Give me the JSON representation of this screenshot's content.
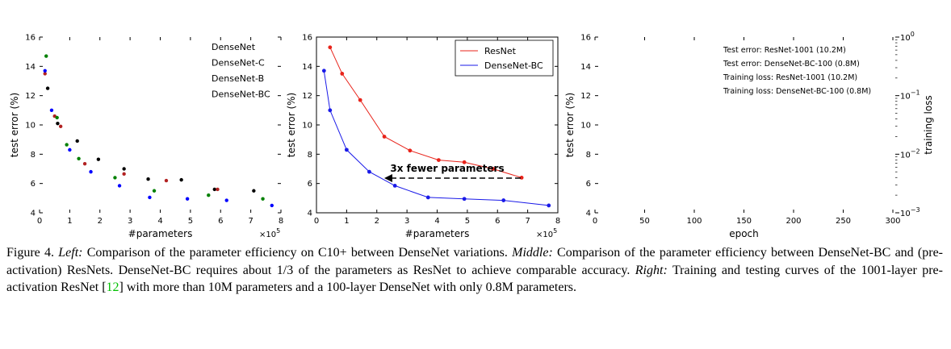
{
  "panels": {
    "left": {
      "xlabel": "#parameters",
      "ylabel": "test error (%)",
      "multiplier": "×10",
      "multiplier_exp": "5",
      "xticks": [
        "0",
        "1",
        "2",
        "3",
        "4",
        "5",
        "6",
        "7",
        "8"
      ],
      "yticks": [
        "4",
        "6",
        "8",
        "10",
        "12",
        "14",
        "16"
      ],
      "legend": [
        "DenseNet",
        "DenseNet-C",
        "DenseNet-B",
        "DenseNet-BC"
      ]
    },
    "middle": {
      "xlabel": "#parameters",
      "ylabel": "test error (%)",
      "multiplier": "×10",
      "multiplier_exp": "5",
      "xticks": [
        "0",
        "1",
        "2",
        "3",
        "4",
        "5",
        "6",
        "7",
        "8"
      ],
      "yticks": [
        "4",
        "6",
        "8",
        "10",
        "12",
        "14",
        "16"
      ],
      "legend": [
        "ResNet",
        "DenseNet-BC"
      ],
      "annotation": "3x fewer parameters"
    },
    "right": {
      "xlabel": "epoch",
      "ylabel": "test error (%)",
      "ylabel_right": "training loss",
      "xticks": [
        "0",
        "50",
        "100",
        "150",
        "200",
        "250",
        "300"
      ],
      "yticks": [
        "4",
        "6",
        "8",
        "10",
        "12",
        "14",
        "16"
      ],
      "yticks_right_base": "10",
      "yticks_right_exp": [
        "0",
        "−1",
        "−2",
        "−3"
      ],
      "legend": [
        "Test error: ResNet-1001 (10.2M)",
        "Test error: DenseNet-BC-100 (0.8M)",
        "Training loss: ResNet-1001 (10.2M)",
        "Training loss: DenseNet-BC-100 (0.8M)"
      ]
    }
  },
  "chart_data": [
    {
      "type": "scatter",
      "xlabel": "#parameters",
      "ylabel": "test error (%)",
      "x_unit": "×10^5",
      "xlim": [
        0,
        8
      ],
      "ylim": [
        4,
        16
      ],
      "legend_position": "top-right",
      "series": [
        {
          "name": "DenseNet",
          "color": "#000000",
          "points": [
            [
              0.27,
              12.5
            ],
            [
              0.6,
              10.1
            ],
            [
              1.25,
              8.9
            ],
            [
              1.95,
              7.65
            ],
            [
              2.8,
              7.0
            ],
            [
              3.6,
              6.3
            ],
            [
              4.7,
              6.25
            ],
            [
              5.8,
              5.6
            ],
            [
              7.1,
              5.5
            ]
          ]
        },
        {
          "name": "DenseNet-C",
          "color": "#b22222",
          "points": [
            [
              0.18,
              13.5
            ],
            [
              0.5,
              10.6
            ],
            [
              0.7,
              9.9
            ],
            [
              1.5,
              7.35
            ],
            [
              2.8,
              6.65
            ],
            [
              4.2,
              6.2
            ],
            [
              5.9,
              5.6
            ]
          ]
        },
        {
          "name": "DenseNet-B",
          "color": "#008000",
          "points": [
            [
              0.22,
              14.7
            ],
            [
              0.58,
              10.5
            ],
            [
              0.9,
              8.65
            ],
            [
              1.3,
              7.7
            ],
            [
              2.5,
              6.4
            ],
            [
              3.8,
              5.5
            ],
            [
              5.6,
              5.2
            ],
            [
              7.4,
              4.95
            ]
          ]
        },
        {
          "name": "DenseNet-BC",
          "color": "#0000ff",
          "points": [
            [
              0.18,
              13.7
            ],
            [
              0.4,
              11.0
            ],
            [
              1.0,
              8.3
            ],
            [
              1.7,
              6.8
            ],
            [
              2.65,
              5.85
            ],
            [
              3.65,
              5.05
            ],
            [
              4.9,
              4.95
            ],
            [
              6.2,
              4.85
            ],
            [
              7.7,
              4.5
            ]
          ]
        }
      ]
    },
    {
      "type": "line",
      "xlabel": "#parameters",
      "ylabel": "test error (%)",
      "x_unit": "×10^5",
      "xlim": [
        0,
        8
      ],
      "ylim": [
        4,
        16
      ],
      "legend_position": "top-right",
      "annotation": "3x fewer parameters",
      "series": [
        {
          "name": "ResNet",
          "color": "#e8231a",
          "points": [
            [
              0.45,
              15.3
            ],
            [
              0.85,
              13.5
            ],
            [
              1.45,
              11.7
            ],
            [
              2.25,
              9.2
            ],
            [
              3.1,
              8.25
            ],
            [
              4.05,
              7.6
            ],
            [
              4.9,
              7.45
            ],
            [
              5.85,
              7.0
            ],
            [
              6.8,
              6.4
            ]
          ]
        },
        {
          "name": "DenseNet-BC",
          "color": "#1a1ae8",
          "points": [
            [
              0.25,
              13.7
            ],
            [
              0.45,
              11.0
            ],
            [
              1.0,
              8.3
            ],
            [
              1.75,
              6.8
            ],
            [
              2.6,
              5.85
            ],
            [
              3.7,
              5.05
            ],
            [
              4.9,
              4.95
            ],
            [
              6.2,
              4.85
            ],
            [
              7.7,
              4.5
            ]
          ]
        }
      ]
    },
    {
      "type": "line",
      "xlabel": "epoch",
      "ylabel": "test error (%)",
      "ylabel_right": "training loss",
      "xlim": [
        0,
        300
      ],
      "ylim": [
        4,
        16
      ],
      "ylim_right": [
        0.001,
        1
      ],
      "legend_position": "top-right",
      "series": [
        {
          "name": "Test error: ResNet-1001 (10.2M)",
          "values": []
        },
        {
          "name": "Test error: DenseNet-BC-100 (0.8M)",
          "values": []
        },
        {
          "name": "Training loss: ResNet-1001 (10.2M)",
          "values": []
        },
        {
          "name": "Training loss: DenseNet-BC-100 (0.8M)",
          "values": []
        }
      ]
    }
  ],
  "caption": {
    "label": "Figure 4.",
    "left_title": "Left:",
    "left_text": "Comparison of the parameter efficiency on C10+ between DenseNet variations.",
    "middle_title": "Middle:",
    "middle_text": "Comparison of the parameter efficiency between DenseNet-BC and (pre-activation) ResNets. DenseNet-BC requires about 1/3 of the parameters as ResNet to achieve comparable accuracy.",
    "right_title": "Right:",
    "right_text_1": "Training and testing curves of the 1001-layer pre-activation ResNet [",
    "cite": "12",
    "right_text_2": "] with more than 10M parameters and a 100-layer DenseNet with only 0.8M parameters."
  }
}
